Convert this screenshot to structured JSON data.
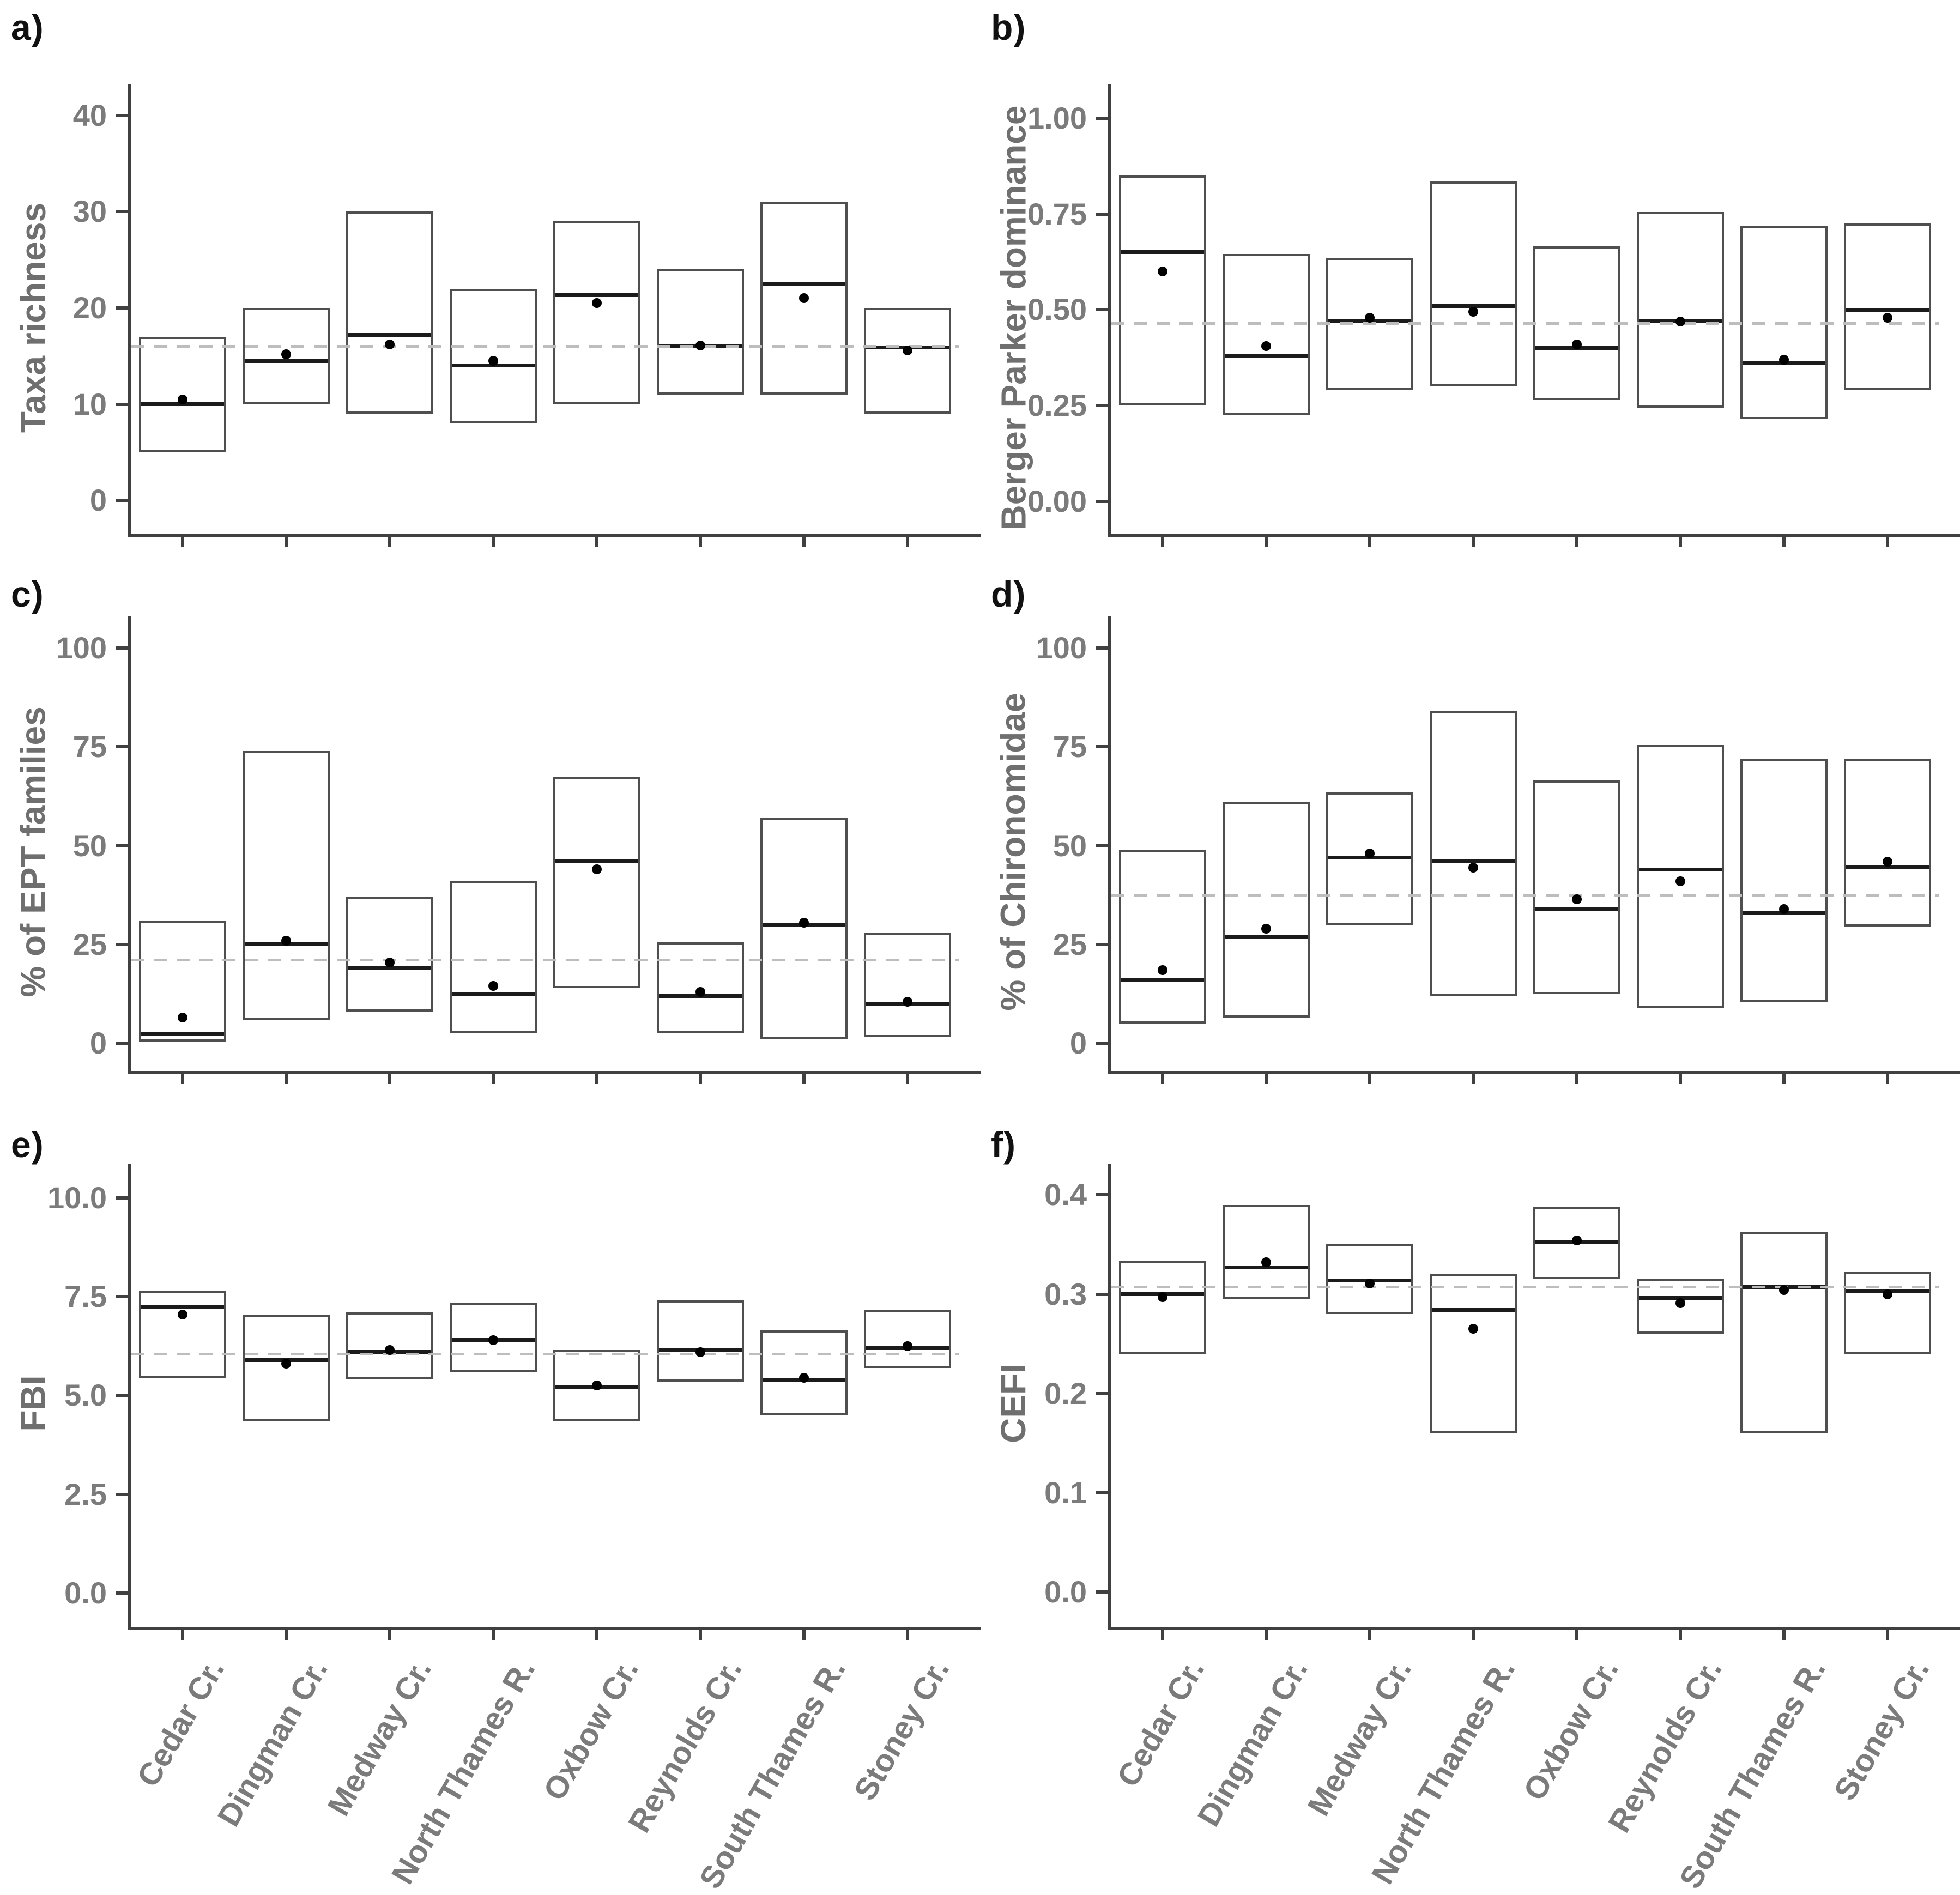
{
  "figure": {
    "sites": [
      "Cedar Cr.",
      "Dingman Cr.",
      "Medway Cr.",
      "North Thames R.",
      "Oxbow Cr.",
      "Reynolds Cr.",
      "South Thames R.",
      "Stoney Cr."
    ],
    "colors": {
      "background": "#ffffff",
      "box_fill": "#ffffff",
      "box_border": "#4f4f4f",
      "median_line": "#1b1b1b",
      "mean_point": "#000000",
      "dashed_reference": "#bdbdbd",
      "axis": "#404040",
      "tick_text": "#7b7b7b",
      "axis_title_text": "#6f6f6f",
      "panel_letter": "#111111"
    }
  },
  "chart_data": [
    {
      "panel_label": "a)",
      "type": "crossbar",
      "title": "",
      "xlabel": "",
      "ylabel": "Taxa richness",
      "ylim": [
        0,
        40
      ],
      "ylim_draw": [
        -3.5,
        41.5
      ],
      "grid": false,
      "yticks": [
        {
          "v": 0,
          "label": "0"
        },
        {
          "v": 10,
          "label": "10"
        },
        {
          "v": 20,
          "label": "20"
        },
        {
          "v": 30,
          "label": "30"
        },
        {
          "v": 40,
          "label": "40"
        }
      ],
      "dashed_reference": 16,
      "categories": [
        "Cedar Cr.",
        "Dingman Cr.",
        "Medway Cr.",
        "North Thames R.",
        "Oxbow Cr.",
        "Reynolds Cr.",
        "South Thames R.",
        "Stoney Cr."
      ],
      "series": [
        {
          "site": "Cedar Cr.",
          "min": 5,
          "median": 10,
          "max": 17,
          "point": 10.5
        },
        {
          "site": "Dingman Cr.",
          "min": 10,
          "median": 14.5,
          "max": 20,
          "point": 15.2
        },
        {
          "site": "Medway Cr.",
          "min": 9,
          "median": 17.2,
          "max": 30,
          "point": 16.2
        },
        {
          "site": "North Thames R.",
          "min": 8,
          "median": 14,
          "max": 22,
          "point": 14.5
        },
        {
          "site": "Oxbow Cr.",
          "min": 10,
          "median": 21.3,
          "max": 29,
          "point": 20.5
        },
        {
          "site": "Reynolds Cr.",
          "min": 11,
          "median": 16,
          "max": 24,
          "point": 16.1
        },
        {
          "site": "South Thames R.",
          "min": 11,
          "median": 22.5,
          "max": 31,
          "point": 21
        },
        {
          "site": "Stoney Cr.",
          "min": 9,
          "median": 15.9,
          "max": 20,
          "point": 15.6
        }
      ]
    },
    {
      "panel_label": "b)",
      "type": "crossbar",
      "title": "",
      "xlabel": "",
      "ylabel": "Berger Parker dominance",
      "ylim": [
        0,
        1
      ],
      "ylim_draw": [
        -0.085,
        1.045
      ],
      "grid": false,
      "yticks": [
        {
          "v": 0,
          "label": "0.00"
        },
        {
          "v": 0.25,
          "label": "0.25"
        },
        {
          "v": 0.5,
          "label": "0.50"
        },
        {
          "v": 0.75,
          "label": "0.75"
        },
        {
          "v": 1,
          "label": "1.00"
        }
      ],
      "dashed_reference": 0.465,
      "categories": [
        "Cedar Cr.",
        "Dingman Cr.",
        "Medway Cr.",
        "North Thames R.",
        "Oxbow Cr.",
        "Reynolds Cr.",
        "South Thames R.",
        "Stoney Cr."
      ],
      "series": [
        {
          "site": "Cedar Cr.",
          "min": 0.25,
          "median": 0.65,
          "max": 0.85,
          "point": 0.6
        },
        {
          "site": "Dingman Cr.",
          "min": 0.225,
          "median": 0.38,
          "max": 0.645,
          "point": 0.405
        },
        {
          "site": "Medway Cr.",
          "min": 0.29,
          "median": 0.47,
          "max": 0.635,
          "point": 0.48
        },
        {
          "site": "North Thames R.",
          "min": 0.3,
          "median": 0.51,
          "max": 0.835,
          "point": 0.495
        },
        {
          "site": "Oxbow Cr.",
          "min": 0.265,
          "median": 0.4,
          "max": 0.665,
          "point": 0.41
        },
        {
          "site": "Reynolds Cr.",
          "min": 0.245,
          "median": 0.47,
          "max": 0.755,
          "point": 0.47
        },
        {
          "site": "South Thames R.",
          "min": 0.215,
          "median": 0.36,
          "max": 0.72,
          "point": 0.37
        },
        {
          "site": "Stoney Cr.",
          "min": 0.29,
          "median": 0.5,
          "max": 0.725,
          "point": 0.48
        }
      ]
    },
    {
      "panel_label": "c)",
      "type": "crossbar",
      "title": "",
      "xlabel": "",
      "ylabel": "% of EPT families",
      "ylim": [
        0,
        100
      ],
      "ylim_draw": [
        -7,
        104
      ],
      "grid": false,
      "yticks": [
        {
          "v": 0,
          "label": "0"
        },
        {
          "v": 25,
          "label": "25"
        },
        {
          "v": 50,
          "label": "50"
        },
        {
          "v": 75,
          "label": "75"
        },
        {
          "v": 100,
          "label": "100"
        }
      ],
      "dashed_reference": 21,
      "categories": [
        "Cedar Cr.",
        "Dingman Cr.",
        "Medway Cr.",
        "North Thames R.",
        "Oxbow Cr.",
        "Reynolds Cr.",
        "South Thames R.",
        "Stoney Cr."
      ],
      "series": [
        {
          "site": "Cedar Cr.",
          "min": 0.4,
          "median": 2.5,
          "max": 31,
          "point": 6.5
        },
        {
          "site": "Dingman Cr.",
          "min": 6,
          "median": 25,
          "max": 74,
          "point": 26
        },
        {
          "site": "Medway Cr.",
          "min": 8,
          "median": 19,
          "max": 37,
          "point": 20.5
        },
        {
          "site": "North Thames R.",
          "min": 2.5,
          "median": 12.5,
          "max": 41,
          "point": 14.5
        },
        {
          "site": "Oxbow Cr.",
          "min": 14,
          "median": 46,
          "max": 67.5,
          "point": 44
        },
        {
          "site": "Reynolds Cr.",
          "min": 2.5,
          "median": 12,
          "max": 25.5,
          "point": 13
        },
        {
          "site": "South Thames R.",
          "min": 1,
          "median": 30,
          "max": 57,
          "point": 30.5
        },
        {
          "site": "Stoney Cr.",
          "min": 1.5,
          "median": 10,
          "max": 28,
          "point": 10.5
        }
      ]
    },
    {
      "panel_label": "d)",
      "type": "crossbar",
      "title": "",
      "xlabel": "",
      "ylabel": "% of Chironomidae",
      "ylim": [
        0,
        100
      ],
      "ylim_draw": [
        -7,
        104
      ],
      "grid": false,
      "yticks": [
        {
          "v": 0,
          "label": "0"
        },
        {
          "v": 25,
          "label": "25"
        },
        {
          "v": 50,
          "label": "50"
        },
        {
          "v": 75,
          "label": "75"
        },
        {
          "v": 100,
          "label": "100"
        }
      ],
      "dashed_reference": 37.5,
      "categories": [
        "Cedar Cr.",
        "Dingman Cr.",
        "Medway Cr.",
        "North Thames R.",
        "Oxbow Cr.",
        "Reynolds Cr.",
        "South Thames R.",
        "Stoney Cr."
      ],
      "series": [
        {
          "site": "Cedar Cr.",
          "min": 5,
          "median": 16,
          "max": 49,
          "point": 18.5
        },
        {
          "site": "Dingman Cr.",
          "min": 6.5,
          "median": 27,
          "max": 61,
          "point": 29
        },
        {
          "site": "Medway Cr.",
          "min": 30,
          "median": 47,
          "max": 63.5,
          "point": 48
        },
        {
          "site": "North Thames R.",
          "min": 12,
          "median": 46,
          "max": 84,
          "point": 44.5
        },
        {
          "site": "Oxbow Cr.",
          "min": 12.5,
          "median": 34,
          "max": 66.5,
          "point": 36.5
        },
        {
          "site": "Reynolds Cr.",
          "min": 9,
          "median": 44,
          "max": 75.5,
          "point": 41
        },
        {
          "site": "South Thames R.",
          "min": 10.5,
          "median": 33,
          "max": 72,
          "point": 34
        },
        {
          "site": "Stoney Cr.",
          "min": 29.5,
          "median": 44.5,
          "max": 72,
          "point": 46
        }
      ]
    },
    {
      "panel_label": "e)",
      "type": "crossbar",
      "title": "",
      "xlabel": "",
      "ylabel": "FBI",
      "ylim": [
        0,
        10
      ],
      "ylim_draw": [
        -0.85,
        10.45
      ],
      "grid": false,
      "yticks": [
        {
          "v": 0,
          "label": "0.0"
        },
        {
          "v": 2.5,
          "label": "2.5"
        },
        {
          "v": 5,
          "label": "5.0"
        },
        {
          "v": 7.5,
          "label": "7.5"
        },
        {
          "v": 10,
          "label": "10.0"
        }
      ],
      "dashed_reference": 6.05,
      "categories": [
        "Cedar Cr.",
        "Dingman Cr.",
        "Medway Cr.",
        "North Thames R.",
        "Oxbow Cr.",
        "Reynolds Cr.",
        "South Thames R.",
        "Stoney Cr."
      ],
      "series": [
        {
          "site": "Cedar Cr.",
          "min": 5.45,
          "median": 7.25,
          "max": 7.65,
          "point": 7.05
        },
        {
          "site": "Dingman Cr.",
          "min": 4.35,
          "median": 5.9,
          "max": 7.05,
          "point": 5.8
        },
        {
          "site": "Medway Cr.",
          "min": 5.4,
          "median": 6.1,
          "max": 7.1,
          "point": 6.15
        },
        {
          "site": "North Thames R.",
          "min": 5.6,
          "median": 6.4,
          "max": 7.35,
          "point": 6.4
        },
        {
          "site": "Oxbow Cr.",
          "min": 4.35,
          "median": 5.2,
          "max": 6.15,
          "point": 5.25
        },
        {
          "site": "Reynolds Cr.",
          "min": 5.35,
          "median": 6.15,
          "max": 7.4,
          "point": 6.1
        },
        {
          "site": "South Thames R.",
          "min": 4.5,
          "median": 5.4,
          "max": 6.65,
          "point": 5.45
        },
        {
          "site": "Stoney Cr.",
          "min": 5.7,
          "median": 6.2,
          "max": 7.15,
          "point": 6.25
        }
      ]
    },
    {
      "panel_label": "f)",
      "type": "crossbar",
      "title": "",
      "xlabel": "",
      "ylabel": "CEFI",
      "ylim": [
        0,
        0.4
      ],
      "ylim_draw": [
        -0.035,
        0.415
      ],
      "grid": false,
      "yticks": [
        {
          "v": 0,
          "label": "0.0"
        },
        {
          "v": 0.1,
          "label": "0.1"
        },
        {
          "v": 0.2,
          "label": "0.2"
        },
        {
          "v": 0.3,
          "label": "0.3"
        },
        {
          "v": 0.4,
          "label": "0.4"
        }
      ],
      "dashed_reference": 0.307,
      "categories": [
        "Cedar Cr.",
        "Dingman Cr.",
        "Medway Cr.",
        "North Thames R.",
        "Oxbow Cr.",
        "Reynolds Cr.",
        "South Thames R.",
        "Stoney Cr."
      ],
      "series": [
        {
          "site": "Cedar Cr.",
          "min": 0.24,
          "median": 0.3,
          "max": 0.334,
          "point": 0.297
        },
        {
          "site": "Dingman Cr.",
          "min": 0.295,
          "median": 0.327,
          "max": 0.39,
          "point": 0.332
        },
        {
          "site": "Medway Cr.",
          "min": 0.28,
          "median": 0.314,
          "max": 0.35,
          "point": 0.311
        },
        {
          "site": "North Thames R.",
          "min": 0.16,
          "median": 0.284,
          "max": 0.32,
          "point": 0.265
        },
        {
          "site": "Oxbow Cr.",
          "min": 0.315,
          "median": 0.352,
          "max": 0.388,
          "point": 0.354
        },
        {
          "site": "Reynolds Cr.",
          "min": 0.26,
          "median": 0.296,
          "max": 0.315,
          "point": 0.291
        },
        {
          "site": "South Thames R.",
          "min": 0.16,
          "median": 0.307,
          "max": 0.363,
          "point": 0.304
        },
        {
          "site": "Stoney Cr.",
          "min": 0.24,
          "median": 0.303,
          "max": 0.322,
          "point": 0.3
        }
      ]
    }
  ]
}
